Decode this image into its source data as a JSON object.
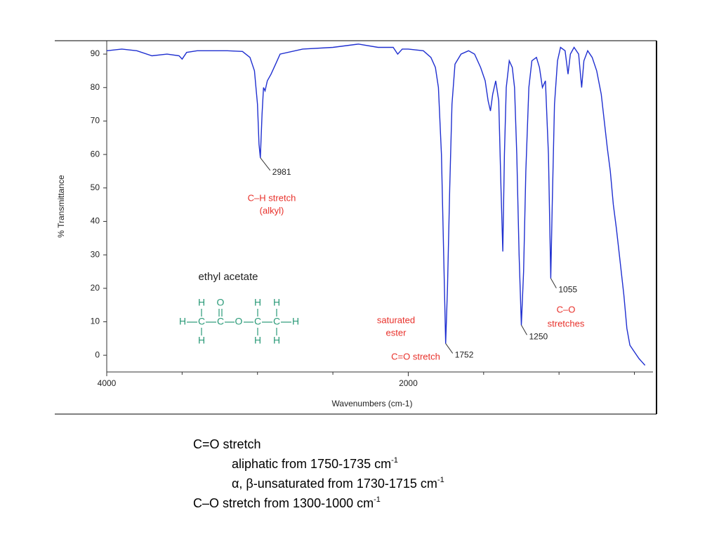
{
  "chart_data": {
    "type": "line",
    "xlabel": "Wavenumbers (cm-1)",
    "ylabel": "% Transmittance",
    "xlim": [
      4000,
      400
    ],
    "xticks": [
      4000,
      2000
    ],
    "xminor_ticks": [
      3500,
      3000,
      2500,
      1500,
      1000,
      500
    ],
    "ylim": [
      -5,
      94
    ],
    "yticks": [
      0,
      10,
      20,
      30,
      40,
      50,
      60,
      70,
      80,
      90
    ],
    "series": [
      {
        "color": "#1f2fd0",
        "x": [
          4000,
          3900,
          3800,
          3700,
          3600,
          3520,
          3500,
          3470,
          3400,
          3300,
          3200,
          3100,
          3050,
          3020,
          3000,
          2990,
          2981,
          2970,
          2960,
          2950,
          2935,
          2910,
          2880,
          2850,
          2700,
          2500,
          2330,
          2200,
          2100,
          2070,
          2040,
          2000,
          1900,
          1850,
          1820,
          1800,
          1780,
          1765,
          1752,
          1740,
          1725,
          1710,
          1690,
          1650,
          1600,
          1560,
          1520,
          1490,
          1470,
          1455,
          1440,
          1420,
          1400,
          1385,
          1373,
          1362,
          1350,
          1330,
          1310,
          1295,
          1280,
          1265,
          1250,
          1235,
          1220,
          1200,
          1180,
          1150,
          1130,
          1110,
          1090,
          1070,
          1055,
          1045,
          1030,
          1010,
          990,
          960,
          940,
          925,
          900,
          870,
          850,
          835,
          810,
          780,
          750,
          720,
          700,
          680,
          660,
          640,
          620,
          600,
          570,
          550,
          530,
          500,
          470,
          450,
          430
        ],
        "values": [
          91,
          91.5,
          91,
          89.5,
          90,
          89.5,
          88.5,
          90.5,
          91,
          91,
          91,
          90.8,
          89,
          85,
          75,
          63,
          59,
          72,
          80,
          79,
          82,
          84,
          87,
          90,
          91.5,
          92,
          93,
          92,
          92,
          90,
          91.5,
          91.5,
          91,
          89,
          86,
          80,
          60,
          30,
          3.5,
          20,
          50,
          75,
          87,
          90,
          91,
          90,
          86,
          82,
          76,
          73,
          78,
          82,
          76,
          50,
          31,
          60,
          80,
          88,
          86,
          80,
          60,
          30,
          9,
          25,
          55,
          80,
          88,
          89,
          86,
          80,
          82,
          60,
          23,
          45,
          75,
          88,
          92,
          91,
          84,
          90,
          92,
          90,
          80,
          88,
          91,
          89,
          85,
          78,
          70,
          62,
          55,
          45,
          38,
          30,
          18,
          8,
          3,
          1,
          -1,
          -2,
          -3
        ]
      }
    ],
    "peaks": [
      {
        "x": 2981,
        "y": 59
      },
      {
        "x": 1752,
        "y": 3.5
      },
      {
        "x": 1250,
        "y": 9
      },
      {
        "x": 1055,
        "y": 23
      }
    ],
    "annotations": [
      "C–H stretch",
      "(alkyl)",
      "ethyl acetate",
      "saturated",
      "ester",
      "C=O stretch",
      "C–O",
      "stretches"
    ],
    "molecule": {
      "top": [
        "H",
        "O",
        "H",
        "H"
      ],
      "middle": [
        "H",
        "C",
        "C",
        "O",
        "C",
        "C",
        "H"
      ],
      "bottom": [
        "H",
        "H",
        "H"
      ]
    }
  },
  "notes": [
    {
      "text": "C=O stretch"
    },
    {
      "text": "aliphatic from 1750-1735 cm",
      "sup": "-1"
    },
    {
      "text": "α, β-unsaturated from 1730-1715 cm",
      "sup": "-1"
    },
    {
      "text": "C–O stretch from 1300-1000 cm",
      "sup": "-1"
    }
  ]
}
